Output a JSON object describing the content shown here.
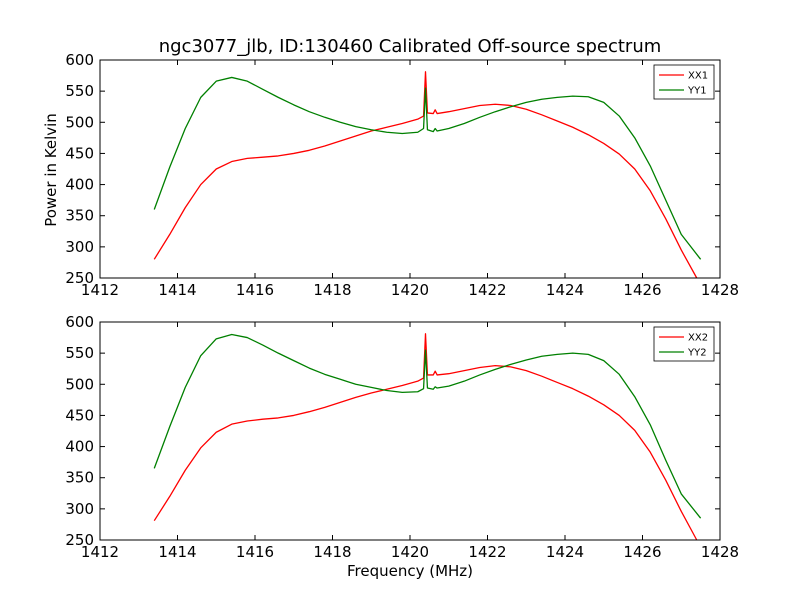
{
  "title": "ngc3077_jlb, ID:130460 Calibrated Off-source spectrum",
  "colors": {
    "XX": "#ff0000",
    "YY": "#008000"
  },
  "chart_data": [
    {
      "type": "line",
      "xlabel": "",
      "ylabel": "Power in Kelvin",
      "xlim": [
        1412,
        1428
      ],
      "ylim": [
        250,
        600
      ],
      "xticks": [
        1412,
        1414,
        1416,
        1418,
        1420,
        1422,
        1424,
        1426,
        1428
      ],
      "yticks": [
        250,
        300,
        350,
        400,
        450,
        500,
        550,
        600
      ],
      "grid": false,
      "legend": "top-right",
      "series": [
        {
          "name": "XX1",
          "color": "#ff0000",
          "x": [
            1413.4,
            1413.8,
            1414.2,
            1414.6,
            1415.0,
            1415.4,
            1415.8,
            1416.2,
            1416.6,
            1417.0,
            1417.4,
            1417.8,
            1418.2,
            1418.6,
            1419.0,
            1419.4,
            1419.8,
            1420.2,
            1420.35,
            1420.4,
            1420.45,
            1420.6,
            1420.65,
            1420.7,
            1421.0,
            1421.4,
            1421.8,
            1422.2,
            1422.6,
            1423.0,
            1423.4,
            1423.8,
            1424.2,
            1424.6,
            1425.0,
            1425.4,
            1425.8,
            1426.2,
            1426.6,
            1427.0,
            1427.4
          ],
          "values": [
            280,
            320,
            363,
            400,
            425,
            437,
            442,
            444,
            446,
            450,
            455,
            462,
            470,
            478,
            486,
            492,
            498,
            505,
            510,
            581,
            515,
            514,
            520,
            514,
            517,
            522,
            527,
            529,
            527,
            521,
            512,
            502,
            492,
            480,
            466,
            449,
            425,
            390,
            345,
            295,
            250
          ]
        },
        {
          "name": "YY1",
          "color": "#008000",
          "x": [
            1413.4,
            1413.8,
            1414.2,
            1414.6,
            1415.0,
            1415.4,
            1415.8,
            1416.2,
            1416.6,
            1417.0,
            1417.4,
            1417.8,
            1418.2,
            1418.6,
            1419.0,
            1419.4,
            1419.8,
            1420.2,
            1420.35,
            1420.4,
            1420.45,
            1420.6,
            1420.65,
            1420.7,
            1421.0,
            1421.4,
            1421.8,
            1422.2,
            1422.6,
            1423.0,
            1423.4,
            1423.8,
            1424.2,
            1424.6,
            1425.0,
            1425.4,
            1425.8,
            1426.2,
            1426.6,
            1427.0,
            1427.5
          ],
          "values": [
            360,
            428,
            490,
            540,
            566,
            572,
            566,
            553,
            540,
            528,
            517,
            508,
            500,
            493,
            488,
            484,
            482,
            484,
            490,
            555,
            488,
            485,
            490,
            486,
            490,
            498,
            508,
            517,
            525,
            532,
            537,
            540,
            542,
            541,
            532,
            510,
            475,
            430,
            375,
            320,
            280
          ]
        }
      ]
    },
    {
      "type": "line",
      "xlabel": "Frequency (MHz)",
      "ylabel": "",
      "xlim": [
        1412,
        1428
      ],
      "ylim": [
        250,
        600
      ],
      "xticks": [
        1412,
        1414,
        1416,
        1418,
        1420,
        1422,
        1424,
        1426,
        1428
      ],
      "yticks": [
        250,
        300,
        350,
        400,
        450,
        500,
        550,
        600
      ],
      "grid": false,
      "legend": "top-right",
      "series": [
        {
          "name": "XX2",
          "color": "#ff0000",
          "x": [
            1413.4,
            1413.8,
            1414.2,
            1414.6,
            1415.0,
            1415.4,
            1415.8,
            1416.2,
            1416.6,
            1417.0,
            1417.4,
            1417.8,
            1418.2,
            1418.6,
            1419.0,
            1419.4,
            1419.8,
            1420.2,
            1420.35,
            1420.4,
            1420.45,
            1420.6,
            1420.65,
            1420.7,
            1421.0,
            1421.4,
            1421.8,
            1422.2,
            1422.6,
            1423.0,
            1423.4,
            1423.8,
            1424.2,
            1424.6,
            1425.0,
            1425.4,
            1425.8,
            1426.2,
            1426.6,
            1427.0,
            1427.4
          ],
          "values": [
            281,
            320,
            362,
            398,
            423,
            436,
            441,
            444,
            446,
            450,
            456,
            463,
            471,
            479,
            486,
            492,
            498,
            505,
            510,
            581,
            515,
            515,
            521,
            515,
            517,
            522,
            527,
            530,
            528,
            522,
            513,
            503,
            493,
            481,
            467,
            450,
            426,
            391,
            346,
            296,
            250
          ]
        },
        {
          "name": "YY2",
          "color": "#008000",
          "x": [
            1413.4,
            1413.8,
            1414.2,
            1414.6,
            1415.0,
            1415.4,
            1415.8,
            1416.2,
            1416.6,
            1417.0,
            1417.4,
            1417.8,
            1418.2,
            1418.6,
            1419.0,
            1419.4,
            1419.8,
            1420.2,
            1420.35,
            1420.4,
            1420.45,
            1420.6,
            1420.65,
            1420.7,
            1421.0,
            1421.4,
            1421.8,
            1422.2,
            1422.6,
            1423.0,
            1423.4,
            1423.8,
            1424.2,
            1424.6,
            1425.0,
            1425.4,
            1425.8,
            1426.2,
            1426.6,
            1427.0,
            1427.5
          ],
          "values": [
            365,
            432,
            495,
            546,
            573,
            580,
            575,
            563,
            550,
            538,
            526,
            516,
            508,
            500,
            495,
            490,
            487,
            488,
            493,
            555,
            494,
            492,
            496,
            494,
            497,
            505,
            515,
            524,
            532,
            539,
            545,
            548,
            550,
            548,
            538,
            516,
            480,
            435,
            378,
            324,
            285
          ]
        }
      ]
    }
  ]
}
